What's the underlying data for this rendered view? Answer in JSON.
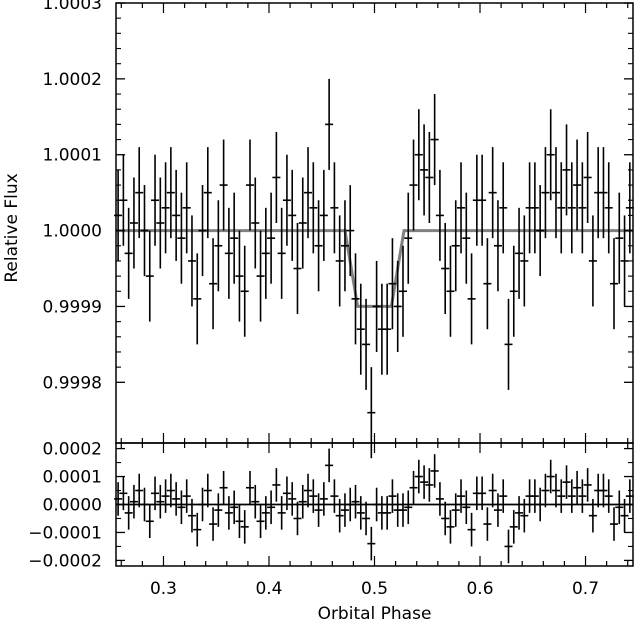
{
  "chart_data": [
    {
      "panel": "light-curve",
      "type": "scatter",
      "ylabel": "Relative Flux",
      "xlim": [
        0.255,
        0.745
      ],
      "ylim": [
        0.99972,
        1.0003
      ],
      "y_ticks": [
        0.9998,
        0.9999,
        1.0,
        1.0001,
        1.0002,
        1.0003
      ],
      "y_tick_labels": [
        "0.9998",
        "0.9999",
        "1.0000",
        "1.0001",
        "1.0002",
        "1.0003"
      ],
      "grid": false,
      "series": [
        {
          "kind": "errorbar",
          "color": "#000000",
          "x": [
            0.257,
            0.262,
            0.267,
            0.272,
            0.277,
            0.282,
            0.287,
            0.292,
            0.297,
            0.302,
            0.307,
            0.312,
            0.317,
            0.322,
            0.327,
            0.332,
            0.337,
            0.342,
            0.347,
            0.352,
            0.357,
            0.362,
            0.367,
            0.372,
            0.377,
            0.382,
            0.387,
            0.392,
            0.397,
            0.402,
            0.407,
            0.412,
            0.417,
            0.422,
            0.427,
            0.432,
            0.437,
            0.442,
            0.447,
            0.452,
            0.457,
            0.462,
            0.467,
            0.472,
            0.477,
            0.482,
            0.487,
            0.492,
            0.497,
            0.502,
            0.507,
            0.512,
            0.517,
            0.522,
            0.527,
            0.532,
            0.537,
            0.542,
            0.547,
            0.552,
            0.557,
            0.562,
            0.567,
            0.572,
            0.577,
            0.582,
            0.587,
            0.592,
            0.597,
            0.602,
            0.607,
            0.612,
            0.617,
            0.622,
            0.627,
            0.632,
            0.637,
            0.642,
            0.647,
            0.652,
            0.657,
            0.662,
            0.667,
            0.672,
            0.677,
            0.682,
            0.687,
            0.692,
            0.697,
            0.702,
            0.707,
            0.712,
            0.717,
            0.722,
            0.727,
            0.732,
            0.737,
            0.742
          ],
          "y": [
            1.00002,
            1.00004,
            0.99997,
            1.00001,
            1.00005,
            1.0,
            0.99994,
            1.00004,
            1.00001,
            1.00003,
            1.00005,
            1.00002,
            0.99999,
            1.00003,
            0.99996,
            0.99991,
            1.0,
            1.00005,
            0.99993,
            0.99998,
            1.00006,
            0.99997,
            0.99999,
            0.99994,
            0.99992,
            1.00006,
            1.00001,
            0.99994,
            0.99997,
            0.99999,
            1.00007,
            0.99997,
            1.00004,
            1.00002,
            0.99995,
            1.00001,
            1.00005,
            1.00003,
            0.99998,
            1.00002,
            1.00014,
            1.00003,
            0.99996,
            0.99998,
            1.0,
            0.99991,
            0.99987,
            0.99985,
            0.99976,
            0.9999,
            0.99987,
            0.99987,
            0.99993,
            0.9999,
            0.99992,
            0.99999,
            1.00006,
            1.0001,
            1.00008,
            1.00007,
            1.00012,
            1.00002,
            0.99995,
            0.99992,
            0.99998,
            1.00003,
            0.99999,
            0.99991,
            1.00004,
            1.00004,
            0.99993,
            1.00005,
            0.99998,
            1.00003,
            0.99985,
            0.99992,
            0.99997,
            0.99996,
            1.00003,
            1.00003,
            1.0,
            1.00005,
            1.0001,
            1.00005,
            1.00003,
            1.00008,
            1.00003,
            1.00006,
            1.00003,
            1.00007,
            0.99996,
            1.00005,
            1.00005,
            1.00003,
            0.99993,
            0.99999,
            0.99996,
            1.00003
          ],
          "yerr": 6e-05
        },
        {
          "kind": "model",
          "color": "#808080",
          "x": [
            0.255,
            0.472,
            0.484,
            0.516,
            0.528,
            0.745
          ],
          "y": [
            1.0,
            1.0,
            0.9999,
            0.9999,
            1.0,
            1.0
          ]
        }
      ]
    },
    {
      "panel": "residuals",
      "type": "scatter",
      "xlabel": "Orbital Phase",
      "xlim": [
        0.255,
        0.745
      ],
      "ylim": [
        -0.00022,
        0.00022
      ],
      "x_ticks": [
        0.3,
        0.4,
        0.5,
        0.6,
        0.7
      ],
      "x_tick_labels": [
        "0.3",
        "0.4",
        "0.5",
        "0.6",
        "0.7"
      ],
      "y_ticks": [
        -0.0002,
        -0.0001,
        0.0,
        0.0001,
        0.0002
      ],
      "y_tick_labels": [
        "−0.0002",
        "−0.0001",
        "0.0000",
        "0.0001",
        "0.0002"
      ],
      "grid": false,
      "series": [
        {
          "kind": "errorbar",
          "color": "#000000",
          "x": [
            0.257,
            0.262,
            0.267,
            0.272,
            0.277,
            0.282,
            0.287,
            0.292,
            0.297,
            0.302,
            0.307,
            0.312,
            0.317,
            0.322,
            0.327,
            0.332,
            0.337,
            0.342,
            0.347,
            0.352,
            0.357,
            0.362,
            0.367,
            0.372,
            0.377,
            0.382,
            0.387,
            0.392,
            0.397,
            0.402,
            0.407,
            0.412,
            0.417,
            0.422,
            0.427,
            0.432,
            0.437,
            0.442,
            0.447,
            0.452,
            0.457,
            0.462,
            0.467,
            0.472,
            0.477,
            0.482,
            0.487,
            0.492,
            0.497,
            0.502,
            0.507,
            0.512,
            0.517,
            0.522,
            0.527,
            0.532,
            0.537,
            0.542,
            0.547,
            0.552,
            0.557,
            0.562,
            0.567,
            0.572,
            0.577,
            0.582,
            0.587,
            0.592,
            0.597,
            0.602,
            0.607,
            0.612,
            0.617,
            0.622,
            0.627,
            0.632,
            0.637,
            0.642,
            0.647,
            0.652,
            0.657,
            0.662,
            0.667,
            0.672,
            0.677,
            0.682,
            0.687,
            0.692,
            0.697,
            0.702,
            0.707,
            0.712,
            0.717,
            0.722,
            0.727,
            0.732,
            0.737,
            0.742
          ],
          "y": [
            2e-05,
            4e-05,
            -3e-05,
            1e-05,
            5e-05,
            0.0,
            -6e-05,
            4e-05,
            1e-05,
            3e-05,
            5e-05,
            2e-05,
            -1e-05,
            3e-05,
            -4e-05,
            -9e-05,
            0.0,
            5e-05,
            -7e-05,
            -2e-05,
            6e-05,
            -3e-05,
            -1e-05,
            -6e-05,
            -8e-05,
            6e-05,
            1e-05,
            -6e-05,
            -3e-05,
            -1e-05,
            7e-05,
            -3e-05,
            4e-05,
            2e-05,
            -5e-05,
            1e-05,
            5e-05,
            3e-05,
            -2e-05,
            2e-05,
            0.00014,
            3e-05,
            -4e-05,
            -2e-05,
            0.0,
            1e-05,
            -3e-05,
            -5e-05,
            -0.00014,
            0.0,
            -3e-05,
            -3e-05,
            3e-05,
            -2e-05,
            -2e-05,
            -1e-05,
            6e-05,
            0.0001,
            8e-05,
            7e-05,
            0.00012,
            2e-05,
            -5e-05,
            -8e-05,
            -2e-05,
            3e-05,
            -1e-05,
            -9e-05,
            4e-05,
            4e-05,
            -7e-05,
            5e-05,
            -2e-05,
            3e-05,
            -0.00015,
            -8e-05,
            -3e-05,
            -4e-05,
            3e-05,
            3e-05,
            0.0,
            5e-05,
            0.0001,
            5e-05,
            3e-05,
            8e-05,
            3e-05,
            6e-05,
            3e-05,
            7e-05,
            -4e-05,
            5e-05,
            5e-05,
            3e-05,
            -7e-05,
            -1e-05,
            -4e-05,
            3e-05
          ],
          "yerr": 6e-05
        },
        {
          "kind": "model",
          "color": "#000000",
          "x": [
            0.255,
            0.745
          ],
          "y": [
            0.0,
            0.0
          ]
        }
      ]
    }
  ]
}
